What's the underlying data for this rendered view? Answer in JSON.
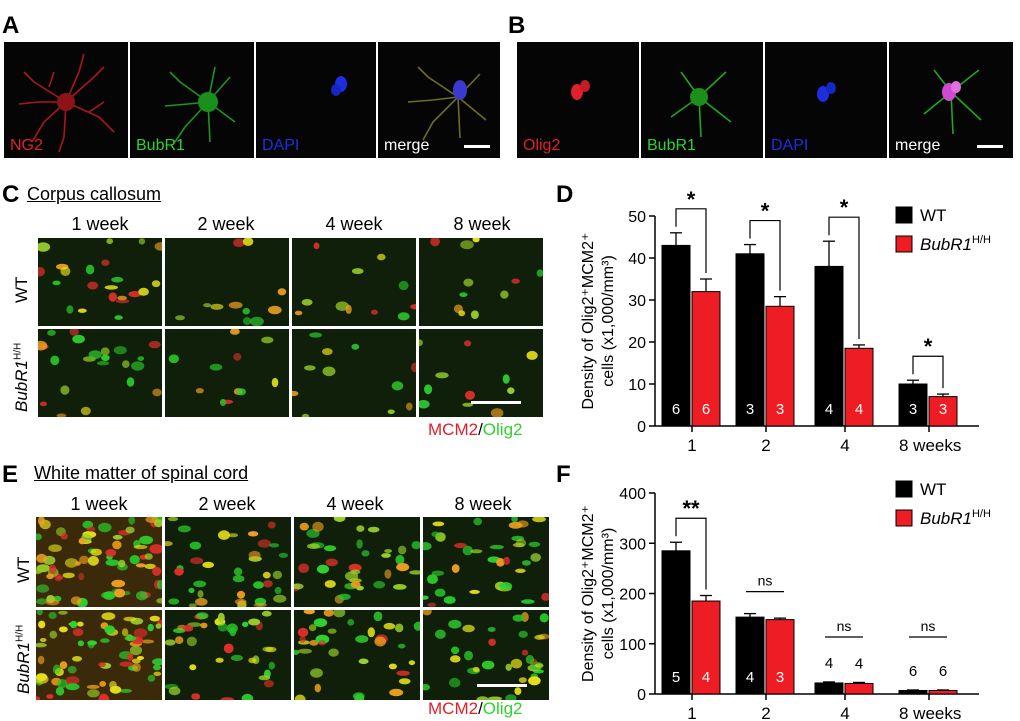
{
  "panel_labels": {
    "A": "A",
    "B": "B",
    "C": "C",
    "D": "D",
    "E": "E",
    "F": "F"
  },
  "panel_A": {
    "channels": [
      {
        "label": "NG2",
        "color": "#e0202a"
      },
      {
        "label": "BubR1",
        "color": "#2fd12f"
      },
      {
        "label": "DAPI",
        "color": "#1d2ee0"
      },
      {
        "label": "merge",
        "color": "#ffffff"
      }
    ]
  },
  "panel_B": {
    "channels": [
      {
        "label": "Olig2",
        "color": "#e0202a"
      },
      {
        "label": "BubR1",
        "color": "#2fd12f"
      },
      {
        "label": "DAPI",
        "color": "#1d2ee0"
      },
      {
        "label": "merge",
        "color": "#ffffff"
      }
    ]
  },
  "panel_C": {
    "title": "Corpus callosum",
    "columns": [
      "1 week",
      "2 week",
      "4 week",
      "8 week"
    ],
    "rows": [
      {
        "label": "WT",
        "italic": false,
        "sup": ""
      },
      {
        "label": "BubR1",
        "italic": true,
        "sup": "H/H"
      }
    ],
    "stain": {
      "a": "MCM2",
      "sep": "/",
      "b": "Olig2"
    }
  },
  "panel_E": {
    "title": "White matter of spinal cord",
    "columns": [
      "1 week",
      "2 week",
      "4 week",
      "8 week"
    ],
    "rows": [
      {
        "label": "WT",
        "italic": false,
        "sup": ""
      },
      {
        "label": "BubR1",
        "italic": true,
        "sup": "H/H"
      }
    ],
    "stain": {
      "a": "MCM2",
      "sep": "/",
      "b": "Olig2"
    }
  },
  "colors": {
    "wt": "#000000",
    "mutant": "#ee1c23",
    "red_text": "#e0202a",
    "green_text": "#2fd12f"
  },
  "chart_data": [
    {
      "panel": "D",
      "type": "bar",
      "categories": [
        "1",
        "2",
        "4",
        "8 weeks"
      ],
      "ylabel_line1": "Density of Olig2⁺MCM2⁺",
      "ylabel_line2": "cells (x1,000/mm³)",
      "ylim": [
        0,
        50
      ],
      "yticks": [
        0,
        10,
        20,
        30,
        40,
        50
      ],
      "legend": [
        {
          "label": "WT",
          "italic": false,
          "sup": ""
        },
        {
          "label": "BubR1",
          "italic": true,
          "sup": "H/H"
        }
      ],
      "series": [
        {
          "name": "WT",
          "values": [
            43,
            41,
            38,
            10
          ],
          "errors": [
            3,
            2.2,
            6,
            0.9
          ],
          "n": [
            "6",
            "3",
            "4",
            "3"
          ]
        },
        {
          "name": "BubR1H/H",
          "values": [
            32,
            28.5,
            18.5,
            7
          ],
          "errors": [
            3,
            2.3,
            0.8,
            0.6
          ],
          "n": [
            "6",
            "3",
            "4",
            "3"
          ]
        }
      ],
      "significance": [
        "*",
        "*",
        "*",
        "*"
      ]
    },
    {
      "panel": "F",
      "type": "bar",
      "categories": [
        "1",
        "2",
        "4",
        "8 weeks"
      ],
      "ylabel_line1": "Density of Olig2⁺MCM2⁺",
      "ylabel_line2": "cells (x1,000/mm³)",
      "ylim": [
        0,
        400
      ],
      "yticks": [
        0,
        100,
        200,
        300,
        400
      ],
      "legend": [
        {
          "label": "WT",
          "italic": false,
          "sup": ""
        },
        {
          "label": "BubR1",
          "italic": true,
          "sup": "H/H"
        }
      ],
      "series": [
        {
          "name": "WT",
          "values": [
            285,
            153,
            22,
            7
          ],
          "errors": [
            17,
            7,
            2,
            1
          ],
          "n": [
            "5",
            "4",
            "4",
            "6"
          ]
        },
        {
          "name": "BubR1H/H",
          "values": [
            185,
            148,
            21,
            7
          ],
          "errors": [
            11,
            3,
            2,
            1
          ],
          "n": [
            "4",
            "3",
            "4",
            "6"
          ]
        }
      ],
      "significance": [
        "**",
        "ns",
        "ns",
        "ns"
      ]
    }
  ]
}
